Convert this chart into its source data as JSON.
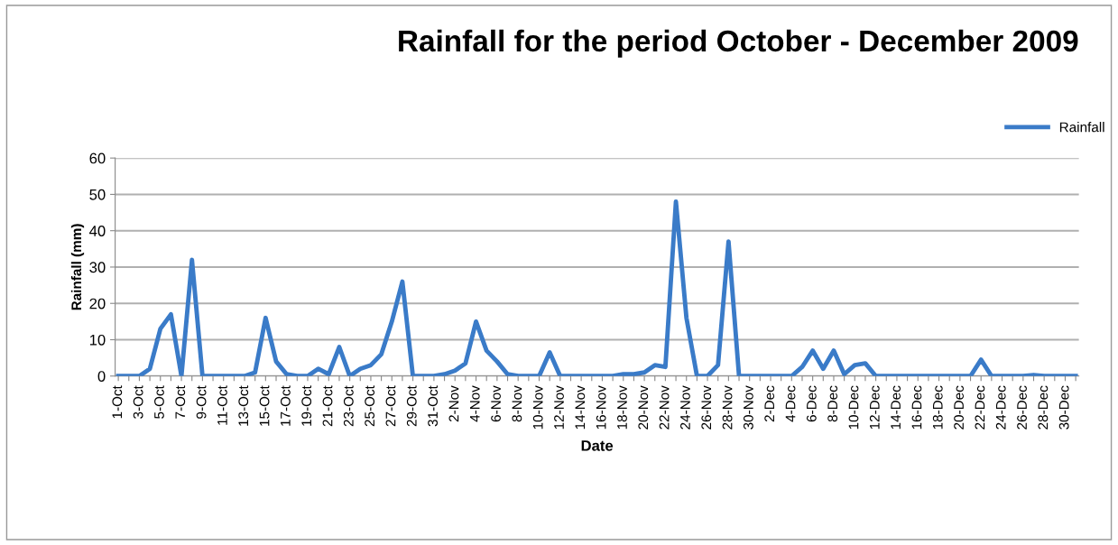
{
  "chart_data": {
    "type": "line",
    "title": "Rainfall for the period October - December 2009",
    "xlabel": "Date",
    "ylabel": "Rainfall (mm)",
    "categories": [
      "1-Oct",
      null,
      "3-Oct",
      null,
      "5-Oct",
      null,
      "7-Oct",
      null,
      "9-Oct",
      null,
      "11-Oct",
      null,
      "13-Oct",
      null,
      "15-Oct",
      null,
      "17-Oct",
      null,
      "19-Oct",
      null,
      "21-Oct",
      null,
      "23-Oct",
      null,
      "25-Oct",
      null,
      "27-Oct",
      null,
      "29-Oct",
      null,
      "31-Oct",
      null,
      "2-Nov",
      null,
      "4-Nov",
      null,
      "6-Nov",
      null,
      "8-Nov",
      null,
      "10-Nov",
      null,
      "12-Nov",
      null,
      "14-Nov",
      null,
      "16-Nov",
      null,
      "18-Nov",
      null,
      "20-Nov",
      null,
      "22-Nov",
      null,
      "24-Nov",
      null,
      "26-Nov",
      null,
      "28-Nov",
      null,
      "30-Nov",
      null,
      "2-Dec",
      null,
      "4-Dec",
      null,
      "6-Dec",
      null,
      "8-Dec",
      null,
      "10-Dec",
      null,
      "12-Dec",
      null,
      "14-Dec",
      null,
      "16-Dec",
      null,
      "18-Dec",
      null,
      "20-Dec",
      null,
      "22-Dec",
      null,
      "24-Dec",
      null,
      "26-Dec",
      null,
      "28-Dec",
      null,
      "30-Dec",
      null
    ],
    "series": [
      {
        "name": "Rainfall",
        "color": "#3a7bc8",
        "values": [
          0,
          0,
          0,
          2,
          13,
          17,
          0,
          32,
          0,
          0,
          0,
          0,
          0,
          1,
          16,
          4,
          0.5,
          0,
          0,
          2,
          0.5,
          8,
          0,
          2,
          3,
          6,
          15,
          26,
          0,
          0,
          0,
          0.5,
          1.5,
          3.5,
          15,
          7,
          4,
          0.5,
          0,
          0,
          0,
          6.5,
          0,
          0,
          0,
          0,
          0,
          0,
          0.5,
          0.5,
          1,
          3,
          2.5,
          48,
          16,
          0,
          0,
          3,
          37,
          0,
          0,
          0,
          0,
          0,
          0,
          2.5,
          7,
          2,
          7,
          0.5,
          3,
          3.5,
          0,
          0,
          0,
          0,
          0,
          0,
          0,
          0,
          0,
          0,
          4.5,
          0,
          0,
          0,
          0,
          0.3,
          0,
          0,
          0,
          0
        ]
      }
    ],
    "ylim": [
      0,
      60
    ],
    "yticks": [
      0,
      10,
      20,
      30,
      40,
      50,
      60
    ],
    "grid": "y",
    "legend": "top right",
    "marker": "none",
    "line_style": "solid"
  }
}
